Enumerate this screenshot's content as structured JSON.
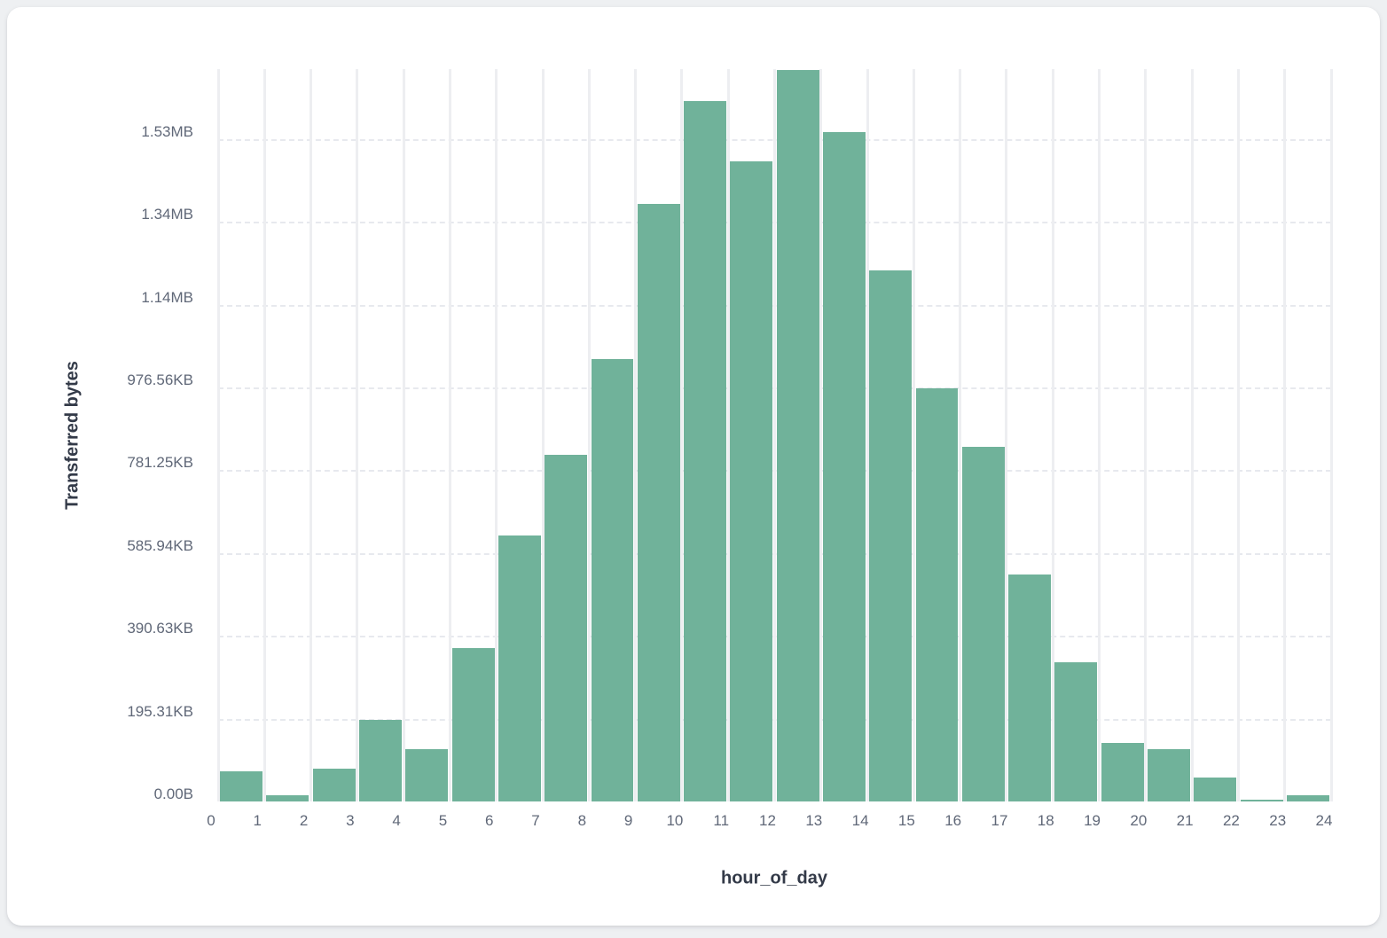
{
  "page": {
    "background_color": "#eef0f2",
    "card_background_color": "#ffffff"
  },
  "chart_data": {
    "type": "bar",
    "title": "",
    "xlabel": "hour_of_day",
    "ylabel": "Transferred bytes",
    "bar_color": "#70b29a",
    "vertical_gridline_color": "#edeef1",
    "horizontal_gridline_color": "#e7e9ee",
    "tick_label_color": "#606878",
    "axis_title_color": "#333a48",
    "grid": "horizontal dashed lines, vertical solid lines, no axis lines",
    "legend": "none",
    "x_tick_labels": [
      "0",
      "1",
      "2",
      "3",
      "4",
      "5",
      "6",
      "7",
      "8",
      "9",
      "10",
      "11",
      "12",
      "13",
      "14",
      "15",
      "16",
      "17",
      "18",
      "19",
      "20",
      "21",
      "22",
      "23",
      "24"
    ],
    "y_tick_labels": [
      "0.00B",
      "195.31KB",
      "390.63KB",
      "585.94KB",
      "781.25KB",
      "976.56KB",
      "1.14MB",
      "1.34MB",
      "1.53MB"
    ],
    "y_tick_values_bytes": [
      0,
      200000,
      400000,
      600000,
      800000,
      1000000,
      1200000,
      1400000,
      1600000
    ],
    "categories": [
      0,
      1,
      2,
      3,
      4,
      5,
      6,
      7,
      8,
      9,
      10,
      11,
      12,
      13,
      14,
      15,
      16,
      17,
      18,
      19,
      20,
      21,
      22,
      23
    ],
    "values": [
      73000,
      15000,
      79000,
      196000,
      126000,
      371000,
      642000,
      838000,
      1068000,
      1444000,
      1692000,
      1546000,
      1766000,
      1616000,
      1283000,
      998000,
      857000,
      549000,
      336000,
      141000,
      126000,
      58000,
      4000,
      15000
    ],
    "ylim": [
      0,
      1768000
    ],
    "xlim": [
      0,
      24
    ]
  }
}
